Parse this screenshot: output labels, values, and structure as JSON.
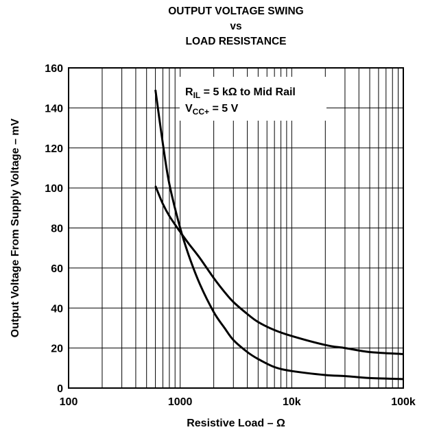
{
  "title_lines": [
    "OUTPUT VOLTAGE SWING",
    "vs",
    "LOAD RESISTANCE"
  ],
  "chart_data": {
    "type": "line",
    "title": "OUTPUT VOLTAGE SWING vs LOAD RESISTANCE",
    "xlabel": "Resistive Load – Ω",
    "ylabel": "Output Voltage From Supply Voltage – mV",
    "x_scale": "log",
    "xlim": [
      100,
      100000
    ],
    "ylim": [
      0,
      160
    ],
    "grid": true,
    "x_ticks": [
      100,
      1000,
      10000,
      100000
    ],
    "x_tick_labels": [
      "100",
      "1000",
      "10k",
      "100k"
    ],
    "y_ticks": [
      0,
      20,
      40,
      60,
      80,
      100,
      120,
      140,
      160
    ],
    "y_tick_labels": [
      "0",
      "20",
      "40",
      "60",
      "80",
      "100",
      "120",
      "140",
      "160"
    ],
    "annotation": {
      "line1_main": "R",
      "line1_sub": "IL",
      "line1_rest": " = 5 kΩ to Mid Rail",
      "line2_main": "V",
      "line2_sub": "CC+",
      "line2_rest": " = 5 V"
    },
    "series": [
      {
        "x": [
          600,
          700,
          800,
          1000,
          1200,
          1500,
          2000,
          2500,
          3000,
          4000,
          5000,
          7000,
          10000,
          20000,
          30000,
          50000,
          100000
        ],
        "values": [
          149,
          122,
          102,
          80,
          66,
          52,
          38,
          30,
          24,
          18,
          14.5,
          10.5,
          8.5,
          6.5,
          6,
          5,
          4.5
        ]
      },
      {
        "x": [
          600,
          700,
          800,
          1000,
          1200,
          1500,
          2000,
          2500,
          3000,
          4000,
          5000,
          7000,
          10000,
          20000,
          30000,
          50000,
          100000
        ],
        "values": [
          101,
          92,
          86,
          78,
          72,
          65,
          55,
          48,
          43,
          37,
          33,
          29,
          26,
          21.5,
          20,
          18,
          17
        ]
      }
    ]
  }
}
